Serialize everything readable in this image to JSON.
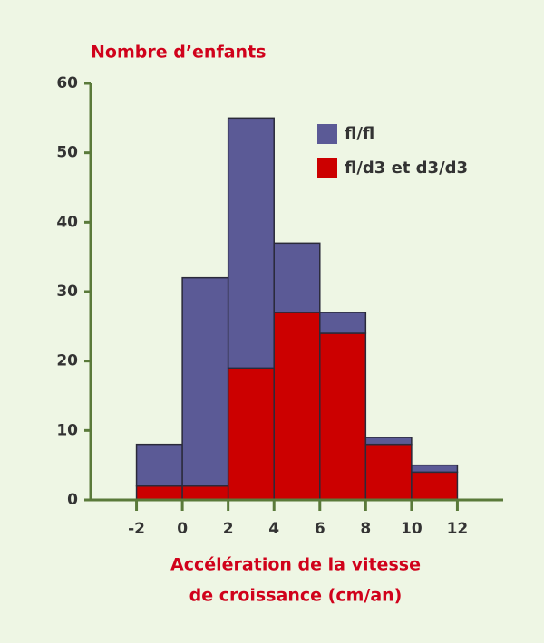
{
  "chart_data": {
    "type": "histogram",
    "stacked": true,
    "title": "Nombre d’enfants",
    "x_label": [
      "Accélération de la vitesse",
      "de croissance (cm/an)"
    ],
    "bins": [
      -2,
      0,
      2,
      4,
      6,
      8,
      10,
      12
    ],
    "series": [
      {
        "name": "fl/fl",
        "color": "#5b5a96",
        "values": [
          6,
          30,
          36,
          10,
          3,
          1,
          1
        ]
      },
      {
        "name": "fl/d3 et d3/d3",
        "color": "#cc0000",
        "values": [
          2,
          2,
          19,
          27,
          24,
          8,
          4
        ]
      }
    ],
    "xlim": [
      -4,
      14
    ],
    "xticks": [
      -2,
      0,
      2,
      4,
      6,
      8,
      10,
      12
    ],
    "ylim": [
      0,
      60
    ],
    "yticks": [
      0,
      10,
      20,
      30,
      40,
      50,
      60
    ],
    "axis_color": "#5a7a3a"
  }
}
